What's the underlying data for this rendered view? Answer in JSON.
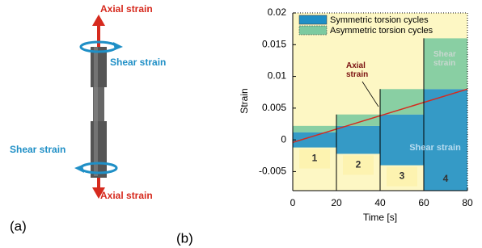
{
  "panel_a": {
    "label": "(a)",
    "axial_top": "Axial strain",
    "shear_top": "Shear strain",
    "shear_bottom": "Shear strain",
    "axial_bottom": "Axial strain"
  },
  "panel_b_label": "(b)",
  "chart_data": {
    "type": "step-band",
    "x_label": "Time [s]",
    "y_label": "Strain",
    "x_edges": [
      0,
      20,
      40,
      60,
      80
    ],
    "series": [
      {
        "name": "Symmetric torsion cycles",
        "color": "#1f8fc6",
        "low": [
          -0.0012,
          -0.0022,
          -0.004,
          -0.008
        ],
        "high": [
          0.0012,
          0.0022,
          0.004,
          0.008
        ]
      },
      {
        "name": "Asymmetric torsion cycles",
        "color": "#7ccaa0",
        "low": [
          0.0012,
          0.0022,
          0.004,
          0.008
        ],
        "high": [
          0.0022,
          0.004,
          0.008,
          0.016
        ]
      }
    ],
    "line": {
      "name": "Axial strain",
      "color": "#d62a1e",
      "x": [
        0,
        80
      ],
      "values": [
        -0.0004,
        0.008
      ]
    },
    "block_labels": [
      "1",
      "2",
      "3",
      "4"
    ],
    "shear_label_top": "Shear strain",
    "shear_label_mid": "Shear strain",
    "xlim": [
      0,
      80
    ],
    "ylim": [
      -0.008,
      0.02
    ],
    "xticks": [
      0,
      20,
      40,
      60,
      80
    ],
    "yticks": [
      -0.005,
      0,
      0.005,
      0.01,
      0.015,
      0.02
    ],
    "grid": true,
    "background": "#fdf7c4"
  }
}
